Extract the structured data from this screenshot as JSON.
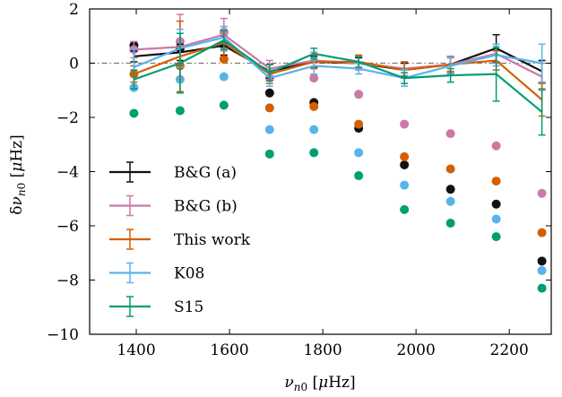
{
  "chart_data": {
    "type": "scatter",
    "xlabel": "ν_n0 [μHz]",
    "ylabel": "δν_n0 [μHz]",
    "xlim": [
      1300,
      2290
    ],
    "ylim": [
      -10,
      2
    ],
    "xticks": [
      1400,
      1600,
      1800,
      2000,
      2200
    ],
    "yticks": [
      -10,
      -8,
      -6,
      -4,
      -2,
      0,
      2
    ],
    "xtick_labels": [
      "1400",
      "1600",
      "1800",
      "2000",
      "2200"
    ],
    "ytick_labels": [
      "−10",
      "−8",
      "−6",
      "−4",
      "−2",
      "0",
      "2"
    ],
    "reference_line": {
      "y": 0,
      "style": "dash-dot",
      "color": "#777777"
    },
    "legend_position": "lower-left",
    "series": [
      {
        "name": "B&G (a)",
        "color": "#111111",
        "x": [
          1395,
          1494,
          1588,
          1686,
          1781,
          1877,
          1975,
          2074,
          2172,
          2270
        ],
        "y": [
          0.25,
          0.4,
          0.65,
          -0.3,
          0.05,
          0.0,
          -0.25,
          -0.05,
          0.55,
          -0.3
        ],
        "yerr": [
          0.2,
          0.3,
          0.35,
          0.25,
          0.2,
          0.2,
          0.25,
          0.3,
          0.5,
          0.4
        ],
        "points": [
          0.65,
          0.55,
          0.65,
          -1.1,
          -1.45,
          -2.4,
          -3.75,
          -4.65,
          -5.2,
          -7.3
        ]
      },
      {
        "name": "B&G (b)",
        "color": "#cc79a7",
        "x": [
          1395,
          1494,
          1588,
          1686,
          1781,
          1877,
          1975,
          2074,
          2172,
          2270
        ],
        "y": [
          0.5,
          0.6,
          1.05,
          -0.2,
          0.1,
          0.0,
          -0.2,
          -0.05,
          0.35,
          -0.5
        ],
        "yerr": [
          0.3,
          1.2,
          0.6,
          0.3,
          0.3,
          0.25,
          0.25,
          0.3,
          0.35,
          0.5
        ],
        "points": [
          0.5,
          0.8,
          1.15,
          -0.55,
          -0.55,
          -1.15,
          -2.25,
          -2.6,
          -3.05,
          -4.8
        ]
      },
      {
        "name": "This work",
        "color": "#d55e00",
        "x": [
          1395,
          1494,
          1588,
          1686,
          1781,
          1877,
          1975,
          2074,
          2172,
          2270
        ],
        "y": [
          -0.4,
          0.25,
          0.75,
          -0.4,
          0.05,
          0.05,
          -0.25,
          -0.05,
          0.1,
          -1.35
        ],
        "yerr": [
          0.3,
          1.3,
          0.6,
          0.35,
          0.25,
          0.25,
          0.3,
          0.25,
          0.35,
          0.6
        ],
        "points": [
          -0.4,
          -0.1,
          0.15,
          -1.65,
          -1.6,
          -2.25,
          -3.45,
          -3.9,
          -4.35,
          -6.25
        ]
      },
      {
        "name": "K08",
        "color": "#56b4e9",
        "x": [
          1395,
          1494,
          1588,
          1686,
          1781,
          1877,
          1975,
          2074,
          2172,
          2270
        ],
        "y": [
          -0.15,
          0.55,
          0.95,
          -0.55,
          -0.1,
          -0.2,
          -0.55,
          -0.1,
          0.3,
          0.0
        ],
        "yerr": [
          0.7,
          0.7,
          0.4,
          0.3,
          0.3,
          0.2,
          0.3,
          0.3,
          0.4,
          0.7
        ],
        "points": [
          -0.9,
          -0.6,
          -0.5,
          -2.45,
          -2.45,
          -3.3,
          -4.5,
          -5.1,
          -5.75,
          -7.65
        ]
      },
      {
        "name": "S15",
        "color": "#009e73",
        "x": [
          1395,
          1494,
          1588,
          1686,
          1781,
          1877,
          1975,
          2074,
          2172,
          2270
        ],
        "y": [
          -0.6,
          0.0,
          0.85,
          -0.35,
          0.35,
          0.05,
          -0.55,
          -0.45,
          -0.4,
          -1.8
        ],
        "yerr": [
          0.35,
          1.1,
          0.35,
          0.3,
          0.2,
          0.2,
          0.2,
          0.25,
          1.0,
          0.85
        ],
        "points": [
          -1.85,
          -1.75,
          -1.55,
          -3.35,
          -3.3,
          -4.15,
          -5.4,
          -5.9,
          -6.4,
          -8.3
        ]
      }
    ]
  }
}
